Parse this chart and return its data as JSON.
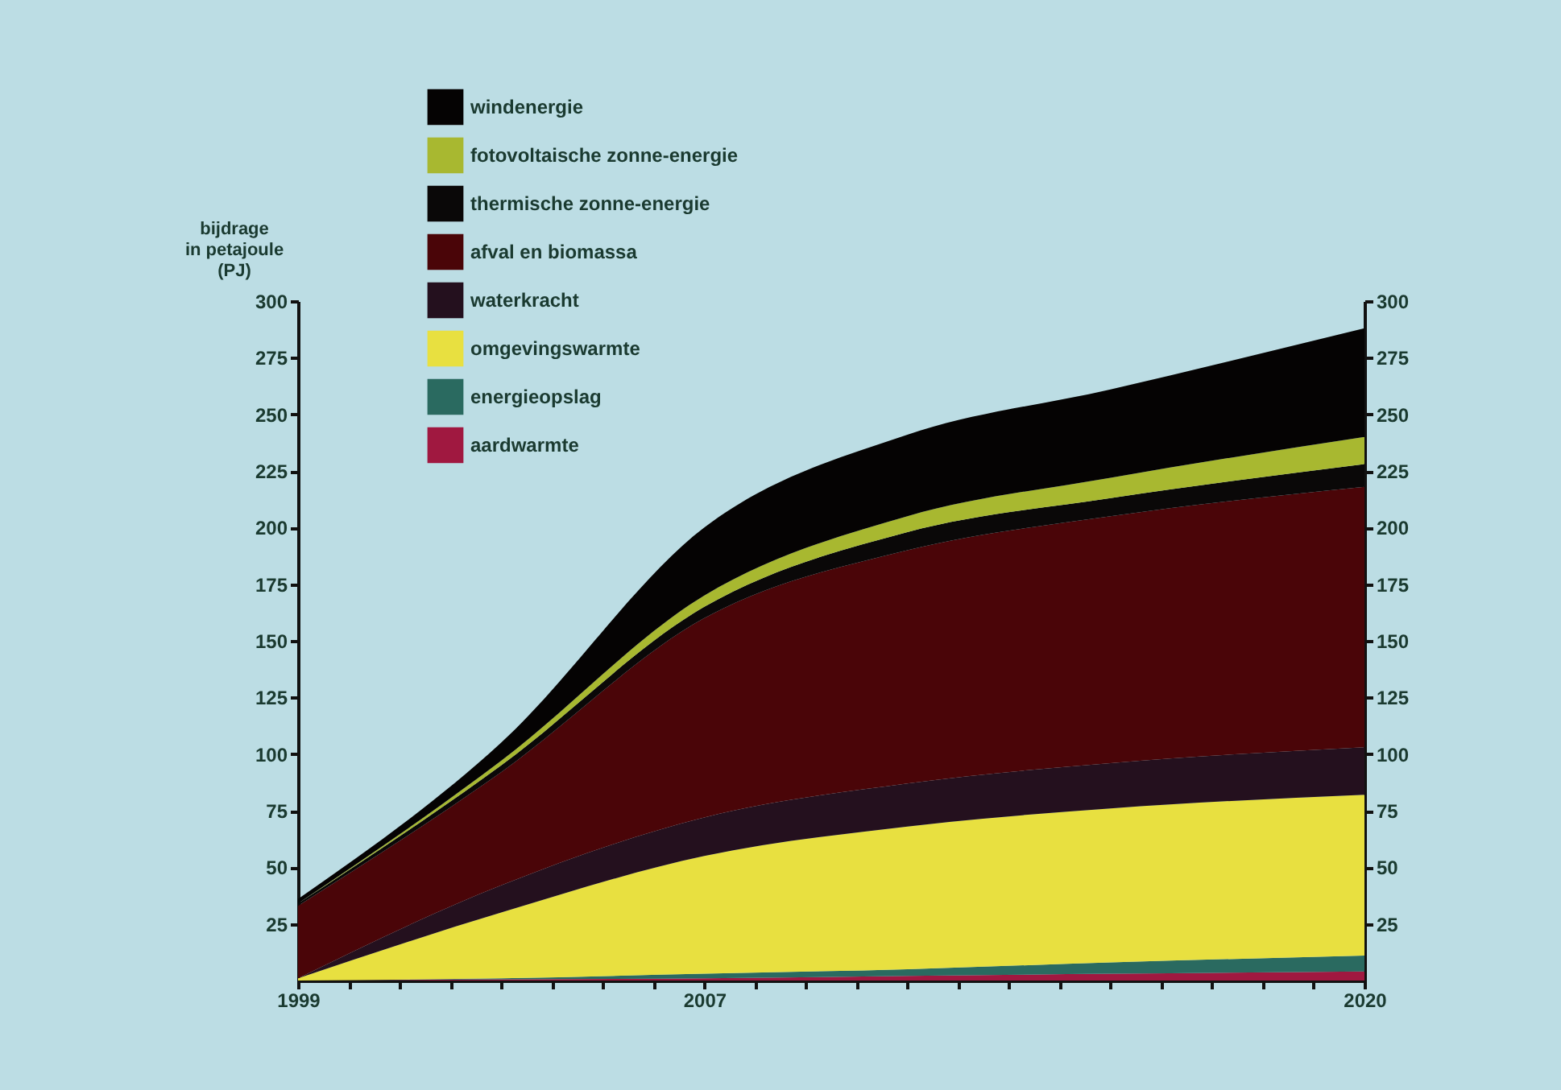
{
  "chart_data": {
    "type": "area",
    "stacked": true,
    "ylabel": "bijdrage\nin petajoule\n(PJ)",
    "x": [
      1999,
      2003,
      2007,
      2011,
      2015,
      2020
    ],
    "xlim": [
      1999,
      2020
    ],
    "xticks": [
      1999,
      {
        "value": 2000,
        "label": null
      },
      {
        "value": 2001,
        "label": null
      },
      {
        "value": 2002,
        "label": null
      },
      {
        "value": 2003,
        "label": null
      },
      {
        "value": 2004,
        "label": null
      },
      {
        "value": 2005,
        "label": null
      },
      {
        "value": 2006,
        "label": null
      },
      2007,
      {
        "value": 2008,
        "label": null
      },
      {
        "value": 2009,
        "label": null
      },
      {
        "value": 2010,
        "label": null
      },
      {
        "value": 2011,
        "label": null
      },
      {
        "value": 2012,
        "label": null
      },
      {
        "value": 2013,
        "label": null
      },
      {
        "value": 2014,
        "label": null
      },
      {
        "value": 2015,
        "label": null
      },
      {
        "value": 2016,
        "label": null
      },
      {
        "value": 2017,
        "label": null
      },
      {
        "value": 2018,
        "label": null
      },
      {
        "value": 2019,
        "label": null
      },
      2020
    ],
    "ylim": [
      0,
      300
    ],
    "yticks": [
      25,
      50,
      75,
      100,
      125,
      150,
      175,
      200,
      225,
      250,
      275,
      300
    ],
    "y2lim": [
      0,
      300
    ],
    "y2ticks": [
      25,
      50,
      75,
      100,
      125,
      150,
      175,
      200,
      225,
      250,
      275,
      300
    ],
    "legend": "top left",
    "grid": false,
    "series": [
      {
        "name": "aardwarmte",
        "color": "#a01840",
        "values": [
          0,
          0.5,
          1,
          2,
          3,
          4
        ]
      },
      {
        "name": "energieopslag",
        "color": "#2a6a60",
        "values": [
          0,
          0.5,
          2,
          3,
          5,
          7
        ]
      },
      {
        "name": "omgevingswarmte",
        "color": "#e8e040",
        "values": [
          1,
          29,
          52,
          63,
          68,
          71
        ]
      },
      {
        "name": "waterkracht",
        "color": "#24101e",
        "values": [
          0,
          12,
          17,
          19,
          20,
          21
        ]
      },
      {
        "name": "afval en biomassa",
        "color": "#4a0508",
        "values": [
          32,
          50,
          88,
          103,
          109,
          115
        ]
      },
      {
        "name": "thermische zonne-energie",
        "color": "#0a0808",
        "values": [
          1,
          3,
          5,
          8,
          8,
          10
        ]
      },
      {
        "name": "fotovoltaische zonne-energie",
        "color": "#a8b830",
        "values": [
          0,
          2,
          5,
          7,
          9,
          12
        ]
      },
      {
        "name": "windenergie",
        "color": "#050303",
        "values": [
          2,
          8,
          30,
          36,
          39,
          48
        ]
      }
    ]
  }
}
